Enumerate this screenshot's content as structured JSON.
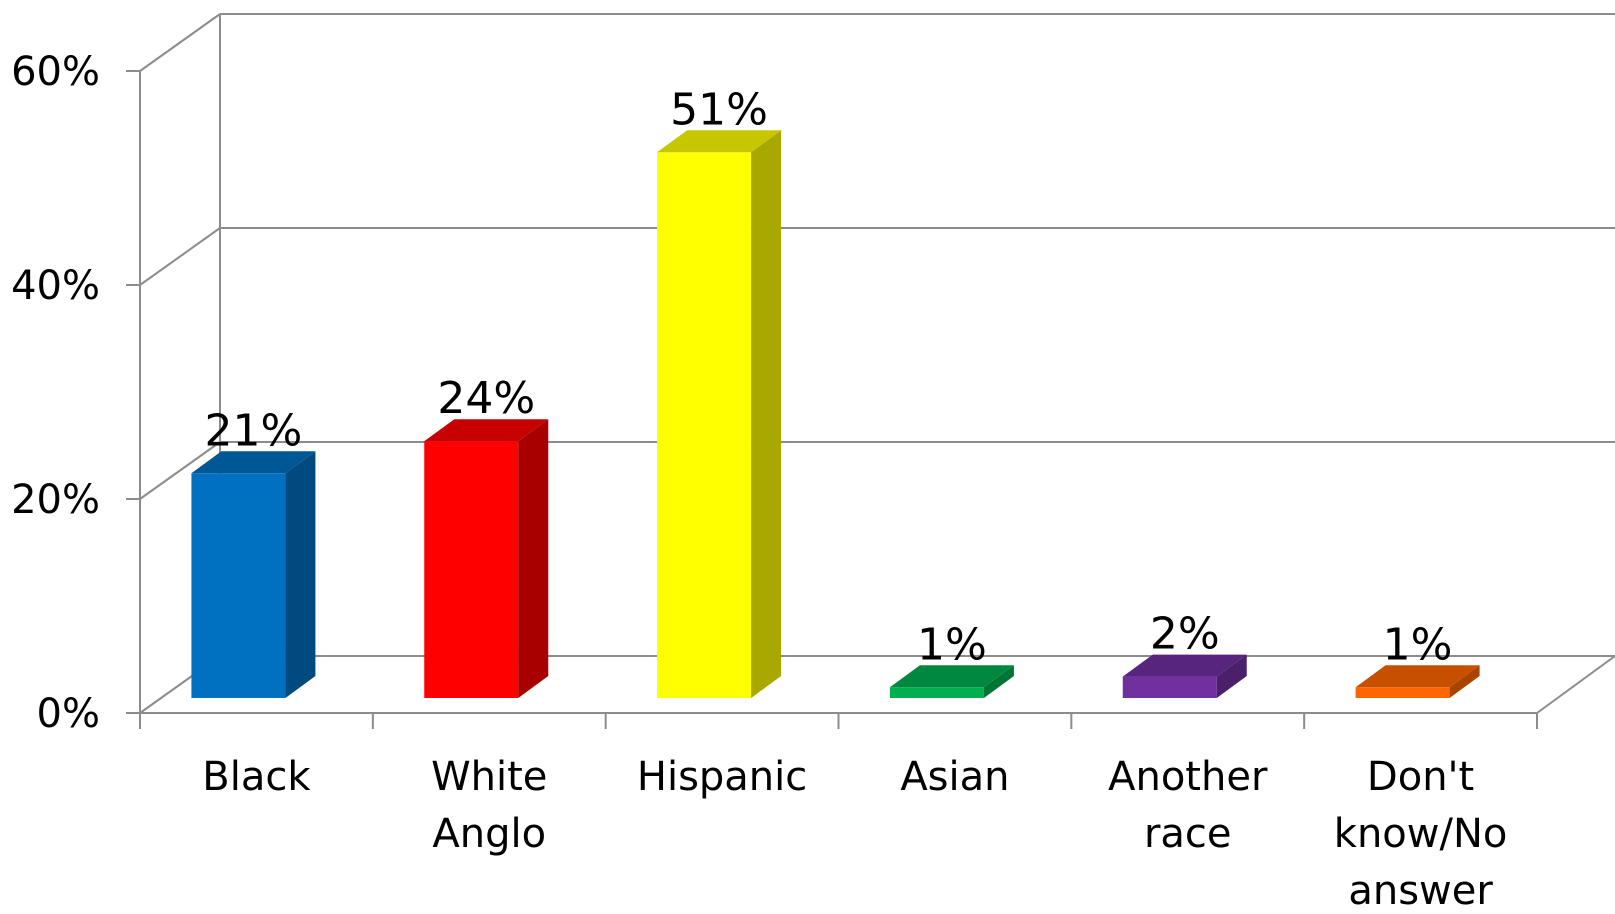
{
  "chart_data": {
    "type": "bar",
    "style": "3d-column",
    "categories": [
      [
        "Black"
      ],
      [
        "White",
        "Anglo"
      ],
      [
        "Hispanic"
      ],
      [
        "Asian"
      ],
      [
        "Another",
        "race"
      ],
      [
        "Don't",
        "know/No",
        "answer"
      ]
    ],
    "values": [
      21,
      24,
      51,
      1,
      2,
      1
    ],
    "data_labels": [
      "21%",
      "24%",
      "51%",
      "1%",
      "2%",
      "1%"
    ],
    "colors": [
      "#0070C0",
      "#FF0000",
      "#FFFF00",
      "#00B050",
      "#7030A0",
      "#FF6600"
    ],
    "yticks": [
      "0%",
      "20%",
      "40%",
      "60%"
    ],
    "ylim": [
      0,
      60
    ],
    "grid": true,
    "legend": "none"
  }
}
